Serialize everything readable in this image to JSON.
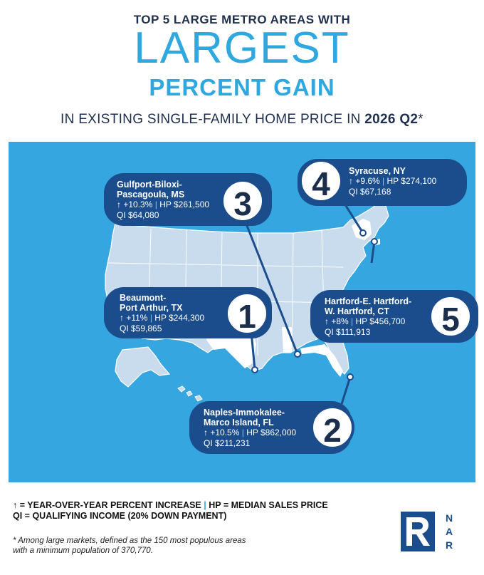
{
  "header": {
    "line1": "TOP 5 LARGE METRO AREAS WITH",
    "line2": "LARGEST",
    "line3": "PERCENT GAIN",
    "line4_prefix": "IN EXISTING SINGLE-FAMILY HOME PRICE IN ",
    "line4_bold": "2026 Q2",
    "line4_suffix": "*"
  },
  "colors": {
    "accent": "#2fa8e0",
    "navy": "#1b4d8c",
    "map_bg": "#35a6df",
    "land": "#c9dcee",
    "highlight_state": "#ffffff"
  },
  "metros": [
    {
      "rank": "1",
      "name_line1": "Beaumont-",
      "name_line2": "Port Arthur, TX",
      "change": "+11%",
      "hp": "HP $244,300",
      "qi": "QI $59,865"
    },
    {
      "rank": "2",
      "name_line1": "Naples-Immokalee-",
      "name_line2": "Marco Island, FL",
      "change": "+10.5%",
      "hp": "HP $862,000",
      "qi": "QI $211,231"
    },
    {
      "rank": "3",
      "name_line1": "Gulfport-Biloxi-",
      "name_line2": "Pascagoula, MS",
      "change": "+10.3%",
      "hp": "HP $261,500",
      "qi": "QI $64,080"
    },
    {
      "rank": "4",
      "name_line1": "Syracuse, NY",
      "name_line2": "",
      "change": "+9.6%",
      "hp": "HP $274,100",
      "qi": "QI $67,168"
    },
    {
      "rank": "5",
      "name_line1": "Hartford-E. Hartford-",
      "name_line2": "W. Hartford, CT",
      "change": "+8%",
      "hp": "HP $456,700",
      "qi": "QI $111,913"
    }
  ],
  "arrow_symbol": "↑",
  "separator": "|",
  "legend": {
    "line1_a": "↑ = YEAR-OVER-YEAR PERCENT INCREASE ",
    "line1_sep": "|",
    "line1_b": " HP = MEDIAN SALES PRICE",
    "line2": "QI = QUALIFYING INCOME (20% DOWN PAYMENT)"
  },
  "footnote": {
    "line1": "* Among large markets, defined as the 150 most populous areas",
    "line2": "with a minimum population of 370,770."
  },
  "logo": {
    "letters": [
      "N",
      "A",
      "R"
    ],
    "icon": "realtor-r-logo-icon"
  }
}
